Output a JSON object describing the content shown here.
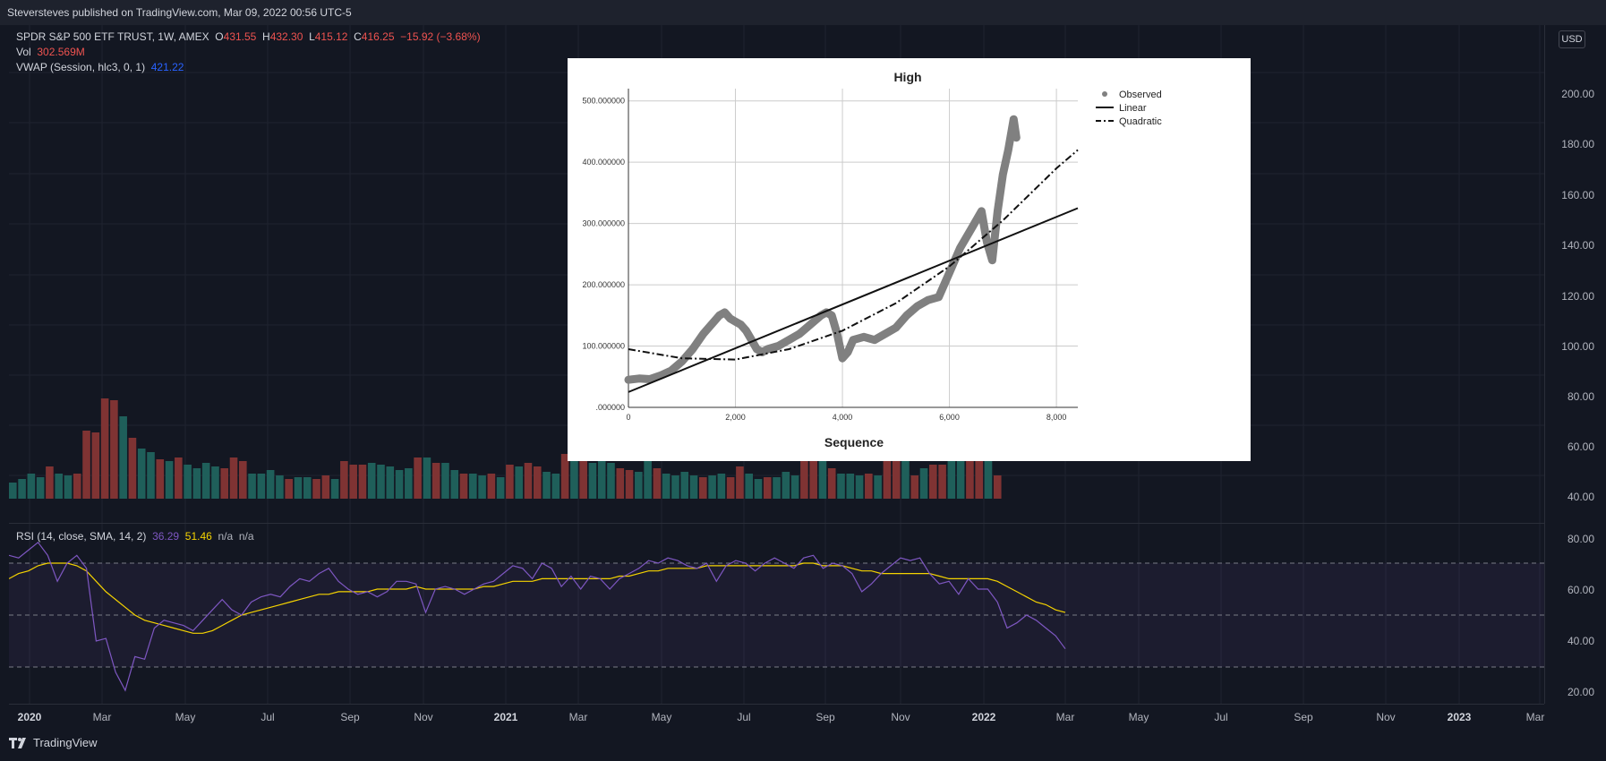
{
  "header": {
    "published": "Steversteves published on TradingView.com, Mar 09, 2022 00:56 UTC-5"
  },
  "legend": {
    "symbol": "SPDR S&P 500 ETF TRUST, 1W, AMEX",
    "o_label": "O",
    "o_value": "431.55",
    "h_label": "H",
    "h_value": "432.30",
    "l_label": "L",
    "l_value": "415.12",
    "c_label": "C",
    "c_value": "416.25",
    "change": "−15.92 (−3.68%)",
    "vol_label": "Vol",
    "vol_value": "302.569M",
    "vwap_label": "VWAP (Session, hlc3, 0, 1)",
    "vwap_value": "421.22",
    "rsi_label": "RSI (14, close, SMA, 14, 2)",
    "rsi_value": "36.29",
    "rsi_sma_value": "51.46",
    "rsi_na1": "n/a",
    "rsi_na2": "n/a"
  },
  "price_scale": {
    "currency": "USD",
    "main_ticks": [
      "200.00",
      "180.00",
      "160.00",
      "140.00",
      "120.00",
      "100.00",
      "80.00",
      "60.00",
      "40.00"
    ],
    "rsi_ticks": [
      "80.00",
      "60.00",
      "40.00",
      "20.00"
    ]
  },
  "time_axis": {
    "labels": [
      "2020",
      "Mar",
      "May",
      "Jul",
      "Sep",
      "Nov",
      "2021",
      "Mar",
      "May",
      "Jul",
      "Sep",
      "Nov",
      "2022",
      "Mar",
      "May",
      "Jul",
      "Sep",
      "Nov",
      "2023",
      "Mar"
    ],
    "bold": [
      true,
      false,
      false,
      false,
      false,
      false,
      true,
      false,
      false,
      false,
      false,
      false,
      true,
      false,
      false,
      false,
      false,
      false,
      true,
      false
    ]
  },
  "footer": {
    "brand": "TradingView"
  },
  "colors": {
    "up": "#26a69a",
    "down": "#ef5350",
    "up_volume": "#1f5f5a",
    "down_volume": "#7f3333",
    "rsi_line": "#7e57c2",
    "rsi_sma": "#f5d300",
    "rsi_band": "#7e57c2"
  },
  "volume_bars": {
    "values": [
      9,
      11,
      14,
      12,
      18,
      14,
      13,
      14,
      38,
      37,
      56,
      55,
      46,
      34,
      28,
      26,
      22,
      21,
      23,
      19,
      17,
      20,
      18,
      17,
      23,
      21,
      14,
      14,
      16,
      13,
      11,
      12,
      12,
      11,
      13,
      11,
      21,
      19,
      19,
      20,
      19,
      18,
      16,
      17,
      23,
      23,
      20,
      20,
      16,
      14,
      14,
      13,
      14,
      12,
      19,
      18,
      20,
      18,
      15,
      14,
      25,
      27,
      24,
      20,
      21,
      20,
      17,
      16,
      15,
      21,
      17,
      14,
      13,
      15,
      13,
      12,
      13,
      14,
      12,
      18,
      14,
      11,
      12,
      12,
      15,
      13,
      21,
      22,
      22,
      17,
      14,
      14,
      13,
      14,
      13,
      21,
      27,
      23,
      13,
      17,
      19,
      19,
      42,
      29,
      26,
      24,
      26,
      13
    ],
    "up": [
      true,
      true,
      true,
      true,
      false,
      true,
      true,
      false,
      false,
      false,
      false,
      false,
      true,
      false,
      true,
      true,
      false,
      true,
      false,
      true,
      true,
      true,
      true,
      false,
      false,
      false,
      true,
      true,
      true,
      true,
      false,
      true,
      true,
      false,
      false,
      true,
      false,
      false,
      false,
      true,
      true,
      true,
      true,
      true,
      false,
      true,
      false,
      true,
      true,
      false,
      true,
      true,
      false,
      true,
      false,
      true,
      false,
      false,
      true,
      true,
      false,
      true,
      false,
      true,
      true,
      true,
      false,
      false,
      true,
      true,
      false,
      true,
      true,
      true,
      true,
      false,
      true,
      true,
      false,
      false,
      true,
      true,
      false,
      true,
      true,
      true,
      false,
      false,
      true,
      false,
      true,
      true,
      true,
      false,
      true,
      false,
      false,
      true,
      false,
      true,
      false,
      false,
      true,
      true,
      false,
      false,
      true,
      false
    ],
    "scale_max": 100
  },
  "rsi": {
    "levels": [
      70,
      50,
      30
    ],
    "values": [
      73,
      72,
      75,
      78,
      73,
      63,
      70,
      73,
      68,
      40,
      41,
      28,
      21,
      34,
      33,
      45,
      48,
      47,
      46,
      44,
      48,
      52,
      56,
      52,
      50,
      55,
      57,
      58,
      57,
      61,
      64,
      63,
      66,
      68,
      63,
      60,
      58,
      59,
      57,
      59,
      63,
      63,
      62,
      51,
      60,
      61,
      60,
      58,
      60,
      62,
      63,
      66,
      69,
      68,
      64,
      70,
      68,
      61,
      65,
      60,
      65,
      64,
      60,
      64,
      66,
      68,
      71,
      70,
      72,
      71,
      69,
      68,
      70,
      63,
      69,
      71,
      70,
      67,
      70,
      72,
      70,
      68,
      72,
      73,
      68,
      70,
      69,
      66,
      59,
      62,
      66,
      69,
      72,
      71,
      72,
      66,
      62,
      63,
      58,
      64,
      60,
      60,
      55,
      45,
      47,
      50,
      48,
      45,
      42,
      37
    ],
    "sma": [
      64,
      66,
      67,
      69,
      70,
      70,
      70,
      69,
      67,
      63,
      59,
      56,
      53,
      50,
      48,
      47,
      46,
      45,
      44,
      43,
      43,
      44,
      46,
      48,
      50,
      51,
      52,
      53,
      54,
      55,
      56,
      57,
      58,
      58,
      59,
      59,
      59,
      59,
      60,
      60,
      60,
      60,
      61,
      60,
      60,
      60,
      60,
      60,
      60,
      61,
      61,
      62,
      63,
      63,
      63,
      64,
      64,
      64,
      64,
      64,
      64,
      64,
      64,
      65,
      65,
      66,
      67,
      67,
      68,
      68,
      68,
      68,
      69,
      69,
      69,
      69,
      69,
      69,
      69,
      69,
      69,
      69,
      70,
      70,
      69,
      69,
      69,
      68,
      67,
      67,
      66,
      66,
      66,
      66,
      66,
      66,
      65,
      64,
      64,
      64,
      64,
      64,
      63,
      61,
      59,
      57,
      55,
      54,
      52,
      51
    ],
    "ylim": [
      20,
      80
    ]
  },
  "inset_chart": {
    "title": "High",
    "xlabel": "Sequence",
    "x_ticks": [
      "0",
      "2,000",
      "4,000",
      "6,000",
      "8,000"
    ],
    "y_ticks": [
      ".000000",
      "100.000000",
      "200.000000",
      "300.000000",
      "400.000000",
      "500.000000"
    ],
    "legend": [
      "Observed",
      "Linear",
      "Quadratic"
    ]
  },
  "chart_data": {
    "type": "scatter",
    "title": "High",
    "xlabel": "Sequence",
    "ylabel": "",
    "xlim": [
      0,
      8400
    ],
    "ylim": [
      0,
      520
    ],
    "series": [
      {
        "name": "Observed",
        "x": [
          0,
          200,
          400,
          600,
          800,
          1000,
          1200,
          1400,
          1600,
          1700,
          1800,
          1900,
          2000,
          2100,
          2200,
          2300,
          2400,
          2500,
          2600,
          2800,
          3000,
          3200,
          3400,
          3600,
          3700,
          3800,
          3900,
          4000,
          4100,
          4200,
          4400,
          4600,
          4800,
          5000,
          5200,
          5400,
          5600,
          5800,
          6000,
          6200,
          6400,
          6600,
          6700,
          6800,
          6900,
          7000,
          7100,
          7200,
          7250
        ],
        "y": [
          45,
          47,
          46,
          52,
          60,
          75,
          95,
          120,
          140,
          150,
          155,
          145,
          140,
          135,
          125,
          110,
          95,
          90,
          95,
          100,
          110,
          120,
          135,
          150,
          155,
          150,
          120,
          80,
          90,
          110,
          115,
          110,
          120,
          130,
          150,
          165,
          175,
          180,
          220,
          260,
          290,
          320,
          270,
          240,
          320,
          380,
          420,
          470,
          440
        ]
      },
      {
        "name": "Linear",
        "x": [
          0,
          8400
        ],
        "y": [
          25,
          325
        ]
      },
      {
        "name": "Quadratic",
        "x": [
          0,
          1000,
          2000,
          3000,
          4000,
          5000,
          6000,
          7000,
          8000,
          8400
        ],
        "y": [
          95,
          80,
          78,
          95,
          125,
          170,
          230,
          305,
          390,
          420
        ]
      }
    ]
  }
}
